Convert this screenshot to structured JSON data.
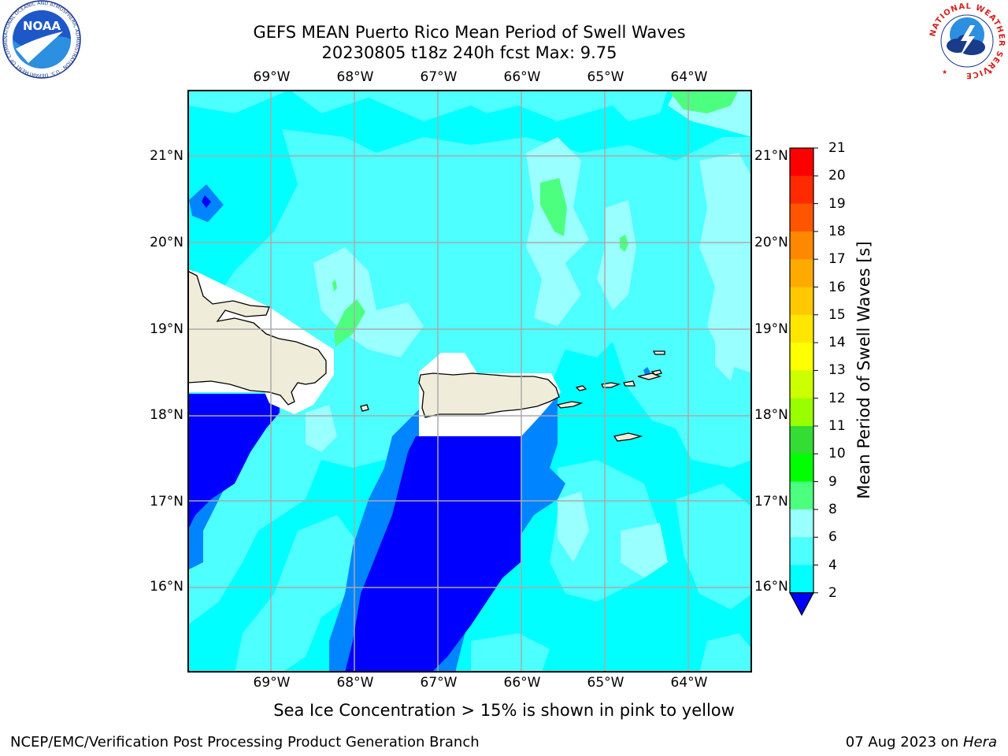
{
  "title": {
    "line1": "GEFS MEAN Puerto Rico Mean Period of Swell Waves",
    "line2": "20230805 t18z 240h fcst   Max: 9.75"
  },
  "map": {
    "lon_ticks": [
      "69°W",
      "68°W",
      "67°W",
      "66°W",
      "65°W",
      "64°W"
    ],
    "lat_ticks": [
      "21°N",
      "20°N",
      "19°N",
      "18°N",
      "17°N",
      "16°N"
    ],
    "extent": {
      "lon": [
        -70.0,
        -63.25
      ],
      "lat": [
        15.0,
        21.75
      ]
    },
    "land_color": "#efedda",
    "grid_color": "#aaaaaa",
    "regions": [
      "Hispaniola",
      "Puerto Rico",
      "Virgin Islands"
    ]
  },
  "colorbar": {
    "label": "Mean Period of Swell Waves [s]",
    "ticks": [
      "2",
      "4",
      "6",
      "8",
      "9",
      "10",
      "11",
      "12",
      "13",
      "14",
      "15",
      "16",
      "17",
      "18",
      "19",
      "20",
      "21"
    ],
    "colors": [
      "#0000ff",
      "#0084ff",
      "#00ffff",
      "#4dffff",
      "#99ffff",
      "#4dff7f",
      "#00ff00",
      "#33dd33",
      "#99ff00",
      "#ccff00",
      "#ffff00",
      "#ffe600",
      "#ffc800",
      "#ffaa00",
      "#ff8800",
      "#ff5500",
      "#ff2a00",
      "#ff0000"
    ],
    "extend": "min"
  },
  "note": "Sea Ice Concentration > 15% is shown in pink to yellow",
  "footer": {
    "left": "NCEP/EMC/Verification Post Processing Product Generation Branch",
    "right_prefix": "07 Aug 2023 on ",
    "right_host": "Hera"
  },
  "logos": {
    "noaa": "NOAA",
    "noaa_ring": "NATIONAL OCEANIC AND ATMOSPHERIC ADMINISTRATION · U.S. DEPARTMENT OF COMMERCE ·",
    "nws_ring": "NATIONAL WEATHER SERVICE"
  }
}
